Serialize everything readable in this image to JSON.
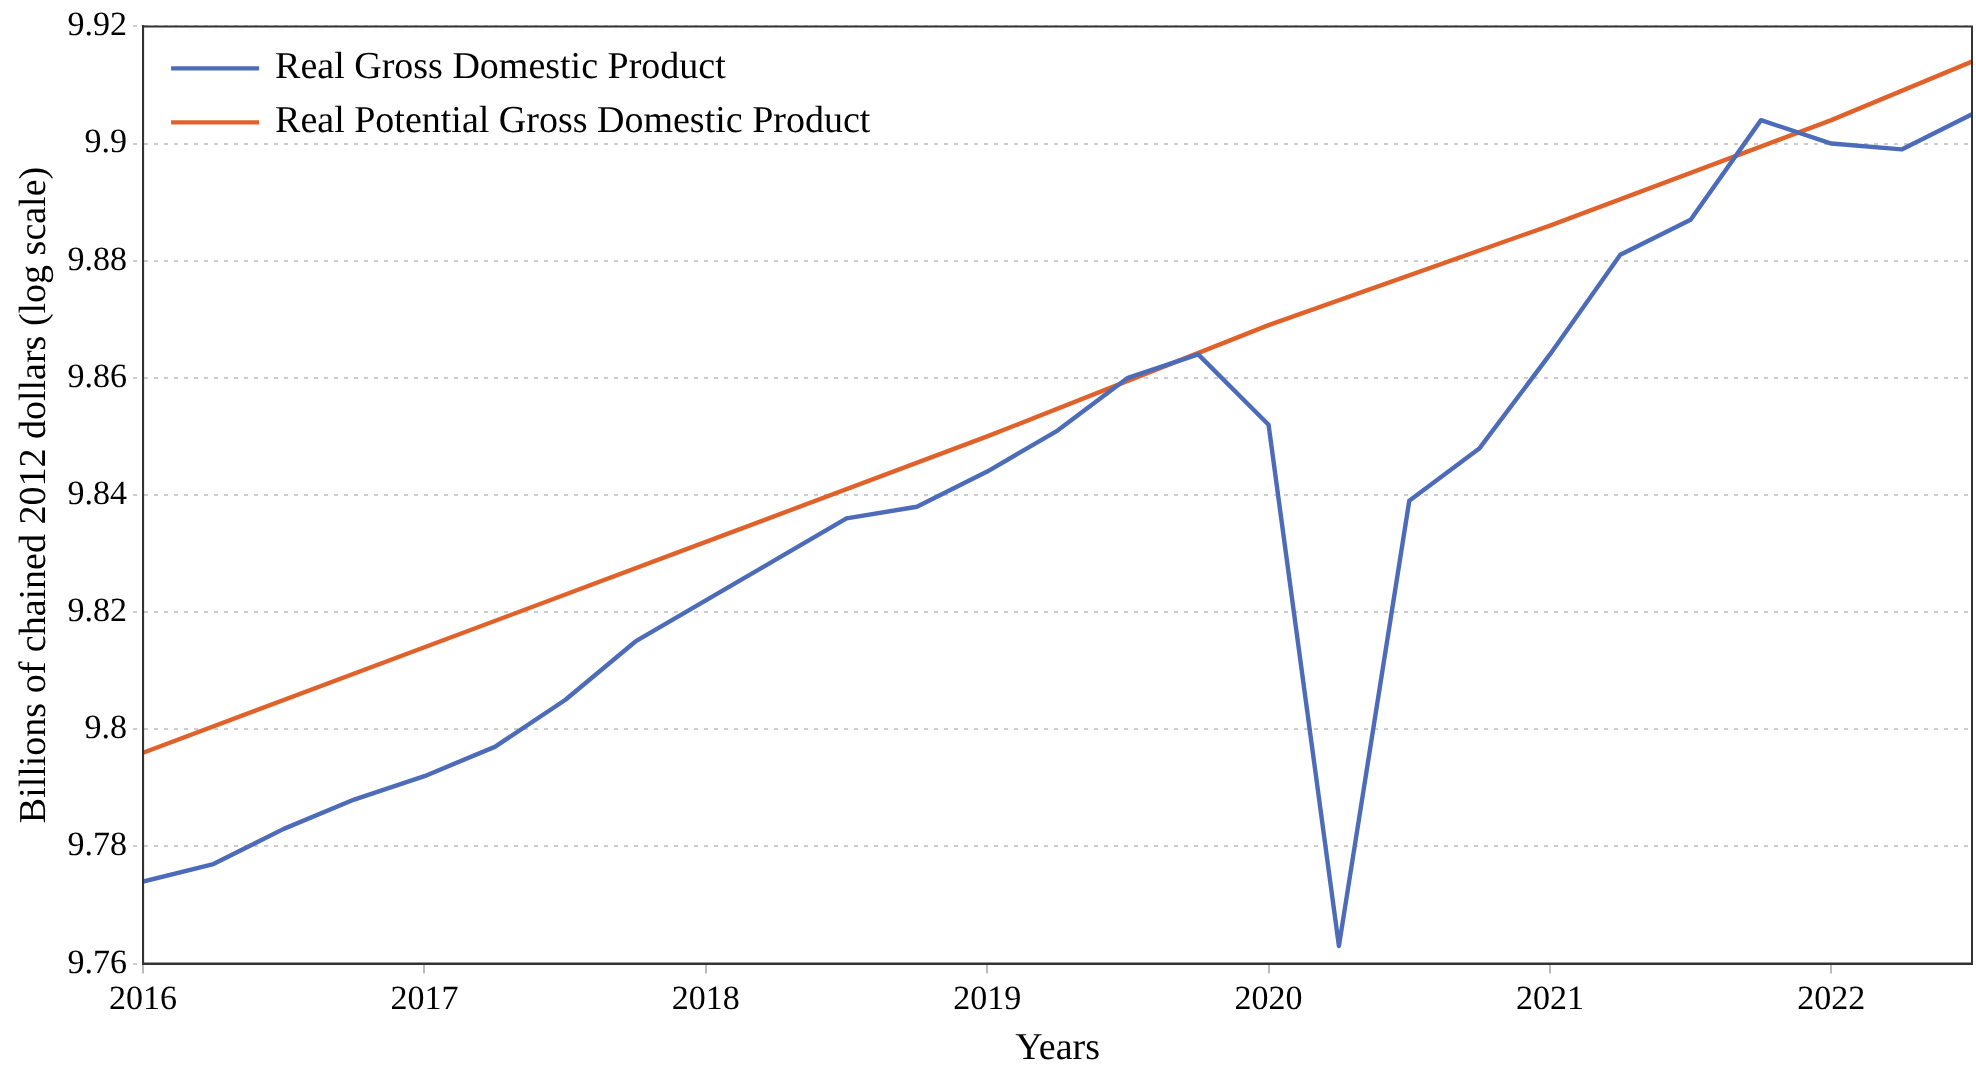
{
  "chart_data": {
    "type": "line",
    "xlabel": "Years",
    "ylabel": "Billions of chained 2012 dollars (log scale)",
    "xlim": [
      2016,
      2022.5
    ],
    "xticks": [
      2016,
      2017,
      2018,
      2019,
      2020,
      2021,
      2022
    ],
    "ylim": [
      9.76,
      9.92
    ],
    "yticks": [
      9.76,
      9.78,
      9.8,
      9.82,
      9.84,
      9.86,
      9.88,
      9.9,
      9.92
    ],
    "grid": "y",
    "legend": "top left",
    "marker": "none",
    "line_style": "solid",
    "series": [
      {
        "name": "Real Gross Domestic Product",
        "color": "#4c6bb8",
        "x": [
          2016,
          2016.25,
          2016.5,
          2016.75,
          2017,
          2017.25,
          2017.5,
          2017.75,
          2018,
          2018.25,
          2018.5,
          2018.75,
          2019,
          2019.25,
          2019.5,
          2019.75,
          2020,
          2020.25,
          2020.5,
          2020.75,
          2021,
          2021.25,
          2021.5,
          2021.75,
          2022,
          2022.25,
          2022.5
        ],
        "values": [
          9.774,
          9.777,
          9.783,
          9.788,
          9.792,
          9.797,
          9.805,
          9.815,
          9.822,
          9.829,
          9.836,
          9.838,
          9.844,
          9.851,
          9.86,
          9.864,
          9.852,
          9.763,
          9.839,
          9.848,
          9.864,
          9.881,
          9.887,
          9.904,
          9.9,
          9.899,
          9.905
        ]
      },
      {
        "name": "Real Potential Gross Domestic Product",
        "color": "#e0622a",
        "x": [
          2016,
          2017,
          2018,
          2019,
          2020,
          2021,
          2022,
          2022.5
        ],
        "values": [
          9.796,
          9.814,
          9.832,
          9.85,
          9.869,
          9.886,
          9.904,
          9.914
        ]
      }
    ]
  }
}
